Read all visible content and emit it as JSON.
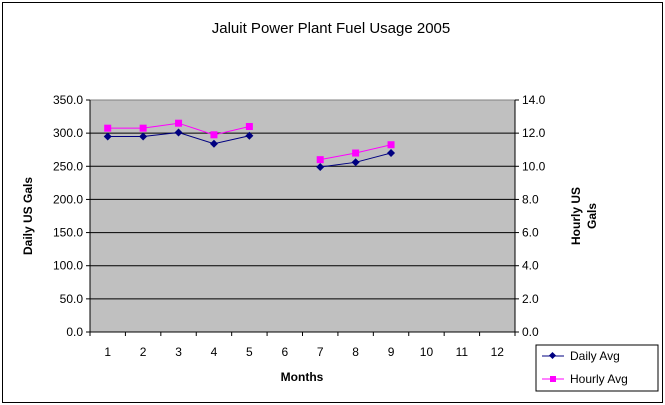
{
  "chart_data": {
    "type": "line",
    "title": "Jaluit Power Plant Fuel Usage 2005",
    "xlabel": "Months",
    "ylabel": "Daily US Gals",
    "y2label_lines": [
      "Hourly US",
      "Gals"
    ],
    "categories": [
      "1",
      "2",
      "3",
      "4",
      "5",
      "6",
      "7",
      "8",
      "9",
      "10",
      "11",
      "12"
    ],
    "ylim": [
      0,
      350
    ],
    "y_ticks": [
      "0.0",
      "50.0",
      "100.0",
      "150.0",
      "200.0",
      "250.0",
      "300.0",
      "350.0"
    ],
    "y2lim": [
      0,
      14
    ],
    "y2_ticks": [
      "0.0",
      "2.0",
      "4.0",
      "6.0",
      "8.0",
      "10.0",
      "12.0",
      "14.0"
    ],
    "grid": true,
    "legend_position": "bottom-right",
    "series": [
      {
        "name": "Daily Avg",
        "axis": "left",
        "color": "#000080",
        "marker": "diamond",
        "values": [
          295,
          295,
          301,
          284,
          296,
          null,
          249,
          256,
          270,
          null,
          null,
          null
        ]
      },
      {
        "name": "Hourly Avg",
        "axis": "right",
        "color": "#ff00ff",
        "marker": "square",
        "values": [
          12.3,
          12.3,
          12.6,
          11.9,
          12.4,
          null,
          10.4,
          10.8,
          11.3,
          null,
          null,
          null
        ]
      }
    ],
    "colors": {
      "plot_background": "#c0c0c0",
      "gridline": "#000000",
      "frame": "#000000"
    }
  }
}
